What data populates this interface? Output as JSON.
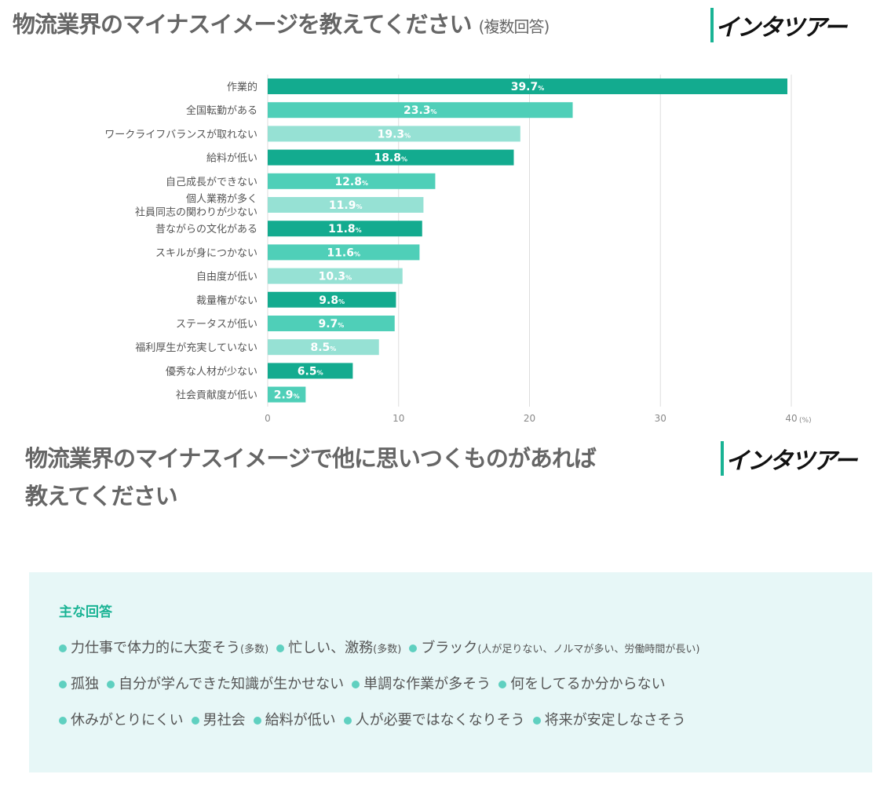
{
  "header": {
    "title": "物流業界のマイナスイメージを教えてください",
    "subtitle": "(複数回答)",
    "logo": "インタツアー"
  },
  "chart_data": {
    "type": "bar",
    "orientation": "horizontal",
    "categories": [
      "作業的",
      "全国転勤がある",
      "ワークライフバランスが取れない",
      "給料が低い",
      "自己成長ができない",
      "個人業務が多く\n社員同志の関わりが少ない",
      "昔ながらの文化がある",
      "スキルが身につかない",
      "自由度が低い",
      "裁量権がない",
      "ステータスが低い",
      "福利厚生が充実していない",
      "優秀な人材が少ない",
      "社会貢献度が低い"
    ],
    "values": [
      39.7,
      23.3,
      19.3,
      18.8,
      12.8,
      11.9,
      11.8,
      11.6,
      10.3,
      9.8,
      9.7,
      8.5,
      6.5,
      2.9
    ],
    "value_suffix": "%",
    "xlim": [
      0,
      40
    ],
    "xticks": [
      0,
      10,
      20,
      30,
      40
    ],
    "x_unit": "(%)",
    "grid": true,
    "colors": [
      "#13ab8f",
      "#4fcfb8",
      "#96e1d4"
    ]
  },
  "section2": {
    "title_line1": "物流業界のマイナスイメージで他に思いつくものがあれば",
    "title_line2": "教えてください",
    "logo": "インタツアー",
    "box_heading": "主な回答",
    "rows": [
      [
        {
          "text": "力仕事で体力的に大変そう",
          "note": "(多数)"
        },
        {
          "text": "忙しい、激務",
          "note": "(多数)"
        },
        {
          "text": "ブラック",
          "note": "(人が足りない、ノルマが多い、労働時間が長い)"
        }
      ],
      [
        {
          "text": "孤独"
        },
        {
          "text": "自分が学んできた知識が生かせない"
        },
        {
          "text": "単調な作業が多そう"
        },
        {
          "text": "何をしてるか分からない"
        }
      ],
      [
        {
          "text": "休みがとりにくい"
        },
        {
          "text": "男社会"
        },
        {
          "text": "給料が低い"
        },
        {
          "text": "人が必要ではなくなりそう"
        },
        {
          "text": "将来が安定しなさそう"
        }
      ]
    ]
  }
}
